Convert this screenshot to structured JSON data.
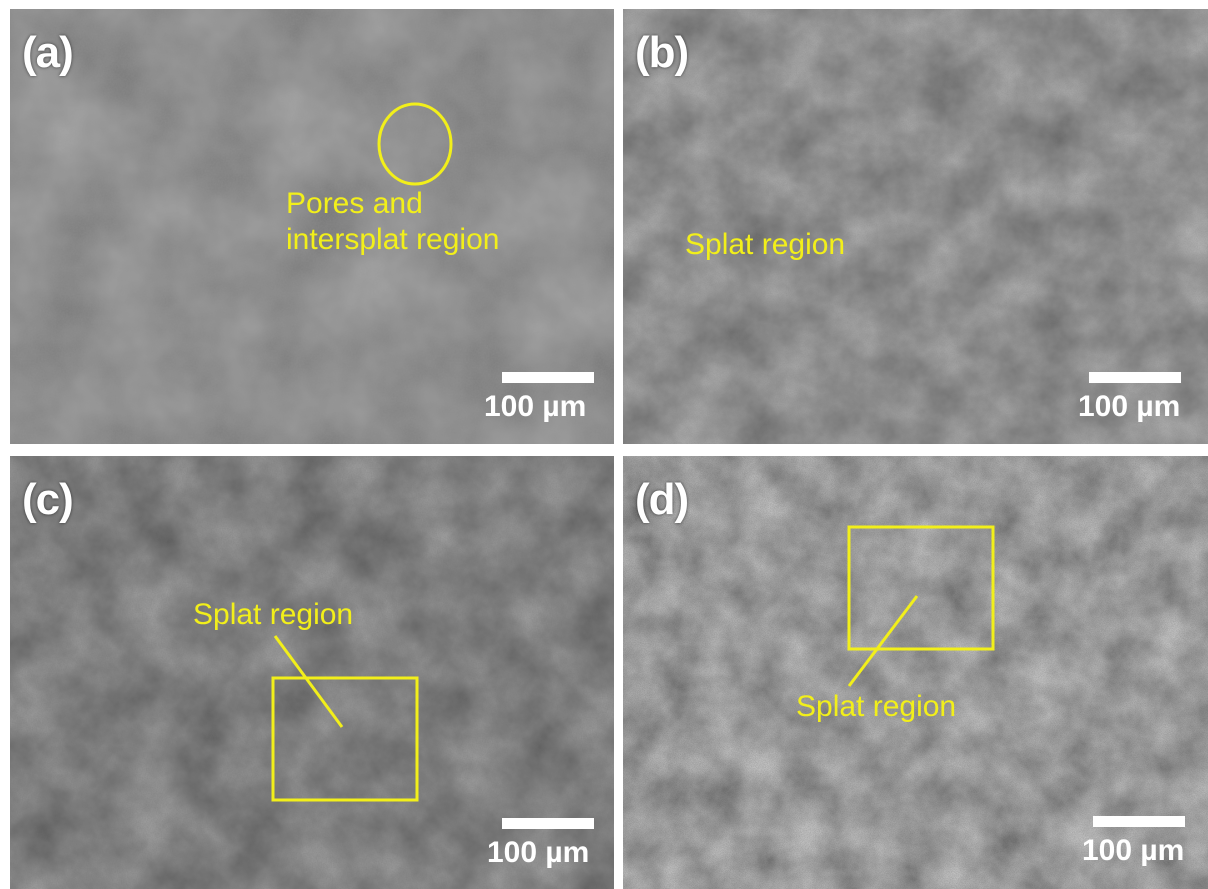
{
  "panels": [
    {
      "label": "(a)",
      "annotation": "Pores and\nintersplat region",
      "scale_text": "100 µm"
    },
    {
      "label": "(b)",
      "annotation": "Splat region",
      "scale_text": "100 µm"
    },
    {
      "label": "(c)",
      "annotation": "Splat region",
      "scale_text": "100 µm"
    },
    {
      "label": "(d)",
      "annotation": "Splat region",
      "scale_text": "100 µm"
    }
  ],
  "colors": {
    "annotation": "#f2ef1a",
    "scalebar": "#ffffff",
    "label": "#ffffff"
  }
}
